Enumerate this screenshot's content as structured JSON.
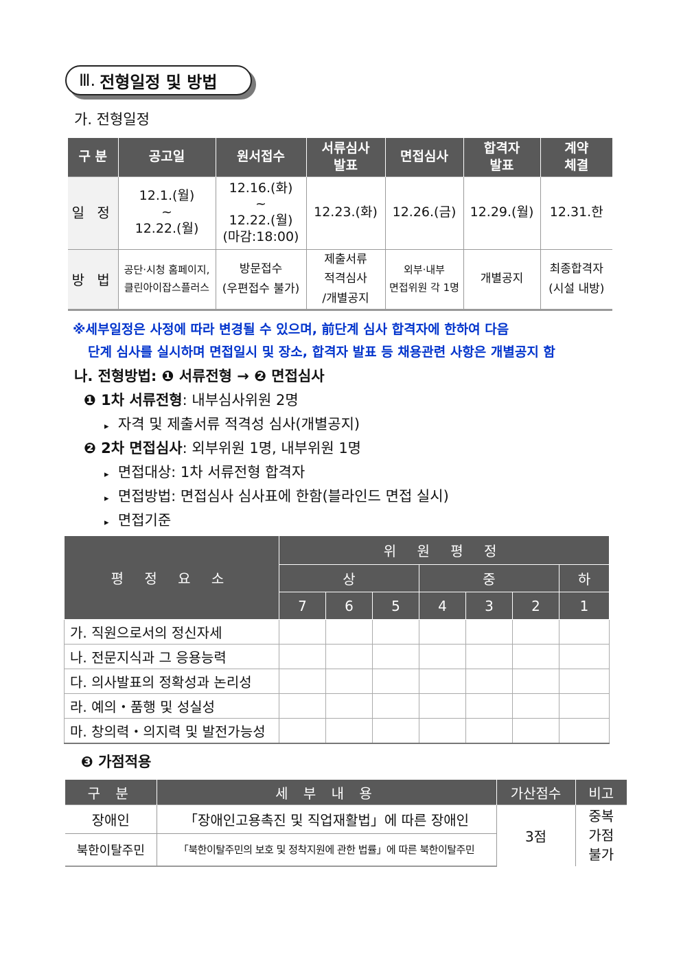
{
  "section": {
    "numeral": "Ⅲ.",
    "title": "전형일정 및 방법"
  },
  "sub_a": "가. 전형일정",
  "schedule": {
    "headers": [
      "구 분",
      "공고일",
      "원서접수",
      "서류심사\n발표",
      "면접심사",
      "합격자\n발표",
      "계약\n체결"
    ],
    "row1": {
      "label": "일 정",
      "cells": [
        "12.1.(월)\n~\n12.22.(월)",
        "12.16.(화)\n~\n12.22.(월)\n(마감:18:00)",
        "12.23.(화)",
        "12.26.(금)",
        "12.29.(월)",
        "12.31.한"
      ]
    },
    "row2": {
      "label": "방 법",
      "cells": [
        "공단·시청 홈페이지,\n클린아이잡스플러스",
        "방문접수\n(우편접수 불가)",
        "제출서류\n적격심사\n/개별공지",
        "외부·내부\n면접위원 각 1명",
        "개별공지",
        "최종합격자\n(시설 내방)"
      ]
    }
  },
  "note": {
    "line1": "※세부일정은 사정에 따라 변경될 수 있으며, 前단계 심사 합격자에 한하여 다음",
    "line2": "단계 심사를 실시하며 면접일시 및 장소, 합격자 발표 등 채용관련 사항은 개별공지 함"
  },
  "sub_b": "나. 전형방법: ❶ 서류전형 → ❷ 면접심사",
  "step1": {
    "head": "❶ 1차 서류전형",
    "rest": ": 내부심사위원 2명",
    "items": [
      "자격 및 제출서류 적격성 심사(개별공지)"
    ]
  },
  "step2": {
    "head": "❷ 2차 면접심사",
    "rest": ": 외부위원 1명, 내부위원 1명",
    "items": [
      "면접대상: 1차 서류전형 합격자",
      "면접방법: 면접심사 심사표에 한함(블라인드 면접 실시)",
      "면접기준"
    ]
  },
  "eval": {
    "factor_header": "평 정 요 소",
    "rating_header": "위 원 평 정",
    "levels": [
      "상",
      "중",
      "하"
    ],
    "scores": [
      "7",
      "6",
      "5",
      "4",
      "3",
      "2",
      "1"
    ],
    "rows": [
      "가. 직원으로서의 정신자세",
      "나. 전문지식과 그 응용능력",
      "다. 의사발표의 정확성과 논리성",
      "라. 예의・품행 및 성실성",
      "마. 창의력・의지력 및 발전가능성"
    ]
  },
  "step3": "❸ 가점적용",
  "bonus": {
    "headers": [
      "구 분",
      "세 부 내 용",
      "가산점수",
      "비고"
    ],
    "rows": [
      {
        "type": "장애인",
        "detail": "「장애인고용촉진 및 직업재활법」에 따른 장애인"
      },
      {
        "type": "북한이탈주민",
        "detail": "「북한이탈주민의 보호 및 정착지원에 관한 법률」에 따른 북한이탈주민"
      }
    ],
    "points": "3점",
    "remark": "중복\n가점\n불가"
  }
}
